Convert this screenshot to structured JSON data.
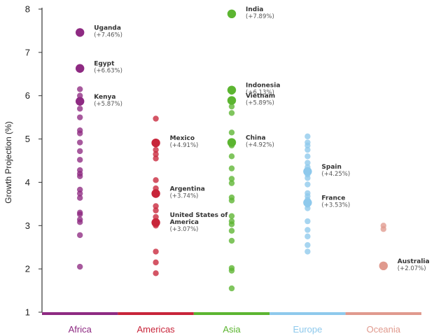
{
  "chart_data": {
    "type": "scatter",
    "ylabel": "Growth Projection (%)",
    "ylim": [
      1,
      8
    ],
    "yticks": [
      "1",
      "2",
      "3",
      "4",
      "5",
      "6",
      "7",
      "8"
    ],
    "grid": false,
    "axis_line": "y",
    "categories": [
      {
        "name": "Africa",
        "color": "#8e2a82"
      },
      {
        "name": "Americas",
        "color": "#c8253a"
      },
      {
        "name": "Asia",
        "color": "#5cb531"
      },
      {
        "name": "Europe",
        "color": "#8ec9ec"
      },
      {
        "name": "Oceania",
        "color": "#e09a8e"
      }
    ],
    "series": [
      {
        "category": "Africa",
        "values": [
          7.46,
          6.63,
          6.15,
          6.0,
          5.87,
          5.7,
          5.5,
          5.2,
          5.13,
          4.92,
          4.72,
          4.52,
          4.28,
          4.2,
          4.14,
          3.83,
          3.74,
          3.64,
          3.3,
          3.26,
          3.14,
          3.08,
          2.78,
          2.05
        ],
        "highlighted": [
          {
            "label": "Uganda",
            "value_label": "(+7.46%)",
            "value": 7.46
          },
          {
            "label": "Egypt",
            "value_label": "(+6.63%)",
            "value": 6.63
          },
          {
            "label": "Kenya",
            "value_label": "(+5.87%)",
            "value": 5.87
          }
        ]
      },
      {
        "category": "Americas",
        "values": [
          5.47,
          4.91,
          4.88,
          4.75,
          4.65,
          4.55,
          4.05,
          3.86,
          3.74,
          3.45,
          3.35,
          3.2,
          3.07,
          3.0,
          2.4,
          2.15,
          1.9
        ],
        "highlighted": [
          {
            "label": "Mexico",
            "value_label": "(+4.91%)",
            "value": 4.91
          },
          {
            "label": "Argentina",
            "value_label": "(+3.74%)",
            "value": 3.74
          },
          {
            "label": "United States of America",
            "value_label": "(+3.07%)",
            "value": 3.07
          }
        ]
      },
      {
        "category": "Asia",
        "values": [
          7.89,
          6.13,
          6.09,
          5.89,
          5.75,
          5.6,
          5.15,
          4.95,
          4.92,
          4.85,
          4.6,
          4.32,
          4.08,
          3.98,
          3.65,
          3.58,
          3.22,
          3.1,
          3.03,
          2.88,
          2.65,
          2.02,
          1.96,
          1.55
        ],
        "highlighted": [
          {
            "label": "India",
            "value_label": "(+7.89%)",
            "value": 7.89
          },
          {
            "label": "Indonesia",
            "value_label": "(+6.13%)",
            "value": 6.13
          },
          {
            "label": "Vietnam",
            "value_label": "(+5.89%)",
            "value": 5.89
          },
          {
            "label": "China",
            "value_label": "(+4.92%)",
            "value": 4.92
          }
        ]
      },
      {
        "category": "Europe",
        "values": [
          5.06,
          4.92,
          4.85,
          4.75,
          4.6,
          4.45,
          4.35,
          4.25,
          4.18,
          4.1,
          3.95,
          3.75,
          3.68,
          3.6,
          3.53,
          3.48,
          3.4,
          3.1,
          2.9,
          2.75,
          2.55,
          2.4
        ],
        "highlighted": [
          {
            "label": "Spain",
            "value_label": "(+4.25%)",
            "value": 4.25
          },
          {
            "label": "France",
            "value_label": "(+3.53%)",
            "value": 3.53
          }
        ]
      },
      {
        "category": "Oceania",
        "values": [
          3.0,
          2.92,
          2.07
        ],
        "highlighted": [
          {
            "label": "Australia",
            "value_label": "(+2.07%)",
            "value": 2.07
          }
        ]
      }
    ]
  }
}
